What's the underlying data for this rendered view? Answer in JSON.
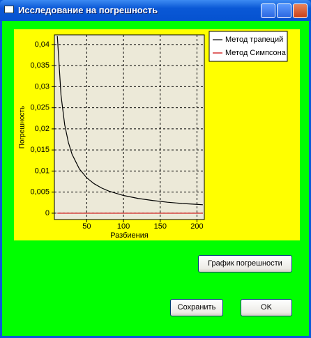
{
  "window": {
    "title": "Исследование на погрешность"
  },
  "chart_data": {
    "type": "line",
    "y_label": "Погрешность",
    "x_label": "Разбиения",
    "x": [
      10,
      15,
      20,
      25,
      30,
      40,
      50,
      60,
      70,
      80,
      100,
      120,
      140,
      160,
      180,
      200,
      208
    ],
    "series": [
      {
        "name": "Метод трапеций",
        "color": "#000000",
        "values": [
          0.042,
          0.028,
          0.021,
          0.0168,
          0.014,
          0.0105,
          0.0084,
          0.007,
          0.006,
          0.00525,
          0.0042,
          0.0035,
          0.003,
          0.0026,
          0.0023,
          0.0021,
          0.002
        ]
      },
      {
        "name": "Метод Симпсона",
        "color": "#cc0000",
        "values": [
          0,
          0,
          0,
          0,
          0,
          0,
          0,
          0,
          0,
          0,
          0,
          0,
          0,
          0,
          0,
          0,
          0
        ]
      }
    ],
    "xlim": [
      6,
      210
    ],
    "xticks": [
      50,
      100,
      150,
      200
    ],
    "ylim": [
      -0.0015,
      0.0423
    ],
    "yticks": [
      0,
      {
        "value": 0.005,
        "label": "0,005"
      },
      {
        "value": 0.01,
        "label": "0,01"
      },
      {
        "value": 0.015,
        "label": "0,015"
      },
      {
        "value": 0.02,
        "label": "0,02"
      },
      {
        "value": 0.025,
        "label": "0,025"
      },
      {
        "value": 0.03,
        "label": "0,03"
      },
      {
        "value": 0.035,
        "label": "0,035"
      },
      {
        "value": 0.04,
        "label": "0,04"
      }
    ],
    "grid": true,
    "legend": "top-right"
  },
  "buttons": {
    "error_chart": "График погрешности",
    "save": "Сохранить",
    "ok": "OK"
  }
}
